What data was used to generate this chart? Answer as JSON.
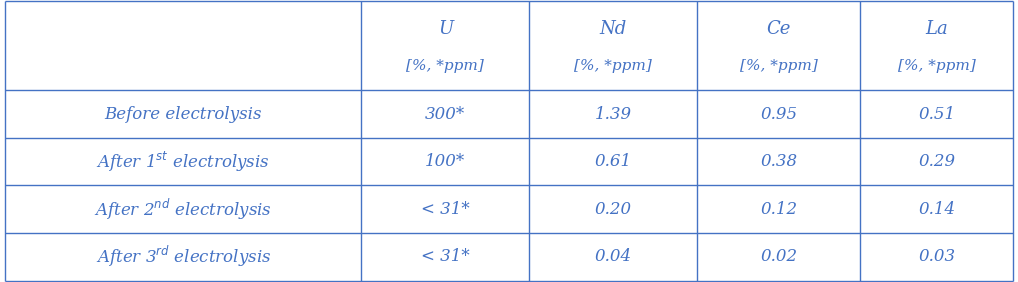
{
  "col_headers": [
    "U",
    "Nd",
    "Ce",
    "La"
  ],
  "col_subheaders": [
    "[%, *ppm]",
    "[%, *ppm]",
    "[%, *ppm]",
    "[%, *ppm]"
  ],
  "cell_data": [
    [
      "300*",
      "1.39",
      "0.95",
      "0.51"
    ],
    [
      "100*",
      "0.61",
      "0.38",
      "0.29"
    ],
    [
      "< 31*",
      "0.20",
      "0.12",
      "0.14"
    ],
    [
      "< 31*",
      "0.04",
      "0.02",
      "0.03"
    ]
  ],
  "text_color": "#4472C4",
  "border_color": "#4472C4",
  "background_color": "#ffffff",
  "font_size": 12,
  "header_font_size": 13
}
